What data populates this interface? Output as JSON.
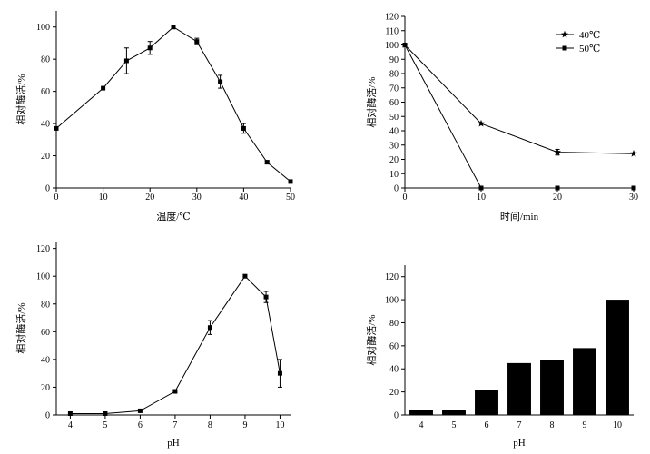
{
  "chart_data": [
    {
      "type": "line",
      "title": "",
      "xlabel": "温度/℃",
      "ylabel": "相对酶活/%",
      "xlim": [
        0,
        50
      ],
      "ylim": [
        0,
        110
      ],
      "xticks": [
        0,
        10,
        20,
        30,
        40,
        50
      ],
      "yticks": [
        0,
        20,
        40,
        60,
        80,
        100
      ],
      "series": [
        {
          "name": "",
          "marker": "square",
          "x": [
            0,
            10,
            15,
            20,
            25,
            30,
            35,
            40,
            45,
            50
          ],
          "values": [
            37,
            62,
            79,
            87,
            100,
            91,
            66,
            37,
            16,
            4
          ],
          "errors": [
            0,
            0,
            8,
            4,
            0,
            2,
            4,
            3,
            1,
            0
          ]
        }
      ]
    },
    {
      "type": "line",
      "title": "",
      "xlabel": "时间/min",
      "ylabel": "相对酶活/%",
      "xlim": [
        0,
        30
      ],
      "ylim": [
        0,
        120
      ],
      "xticks": [
        0,
        10,
        20,
        30
      ],
      "yticks": [
        0,
        10,
        20,
        30,
        40,
        50,
        60,
        70,
        80,
        90,
        100,
        110,
        120
      ],
      "legend": "top-right",
      "series": [
        {
          "name": "40℃",
          "marker": "star",
          "x": [
            0,
            10,
            20,
            30
          ],
          "values": [
            100,
            45,
            25,
            24
          ],
          "errors": [
            0,
            0,
            2,
            0
          ]
        },
        {
          "name": "50℃",
          "marker": "square",
          "x": [
            0,
            10,
            20,
            30
          ],
          "values": [
            100,
            0,
            0,
            0
          ],
          "errors": [
            0,
            0,
            0,
            0
          ]
        }
      ]
    },
    {
      "type": "line",
      "title": "",
      "xlabel": "pH",
      "ylabel": "相对酶活/%",
      "xlim": [
        3.6,
        10.3
      ],
      "ylim": [
        0,
        125
      ],
      "xticks": [
        4,
        5,
        6,
        7,
        8,
        9,
        10
      ],
      "yticks": [
        0,
        20,
        40,
        60,
        80,
        100,
        120
      ],
      "series": [
        {
          "name": "",
          "marker": "square",
          "x": [
            4,
            5,
            6,
            7,
            8,
            9,
            9.6,
            10
          ],
          "values": [
            1,
            1,
            3,
            17,
            63,
            100,
            85,
            30
          ],
          "errors": [
            0,
            0,
            0,
            0,
            5,
            0,
            4,
            10
          ]
        }
      ]
    },
    {
      "type": "bar",
      "title": "",
      "xlabel": "pH",
      "ylabel": "相对酶活/%",
      "ylim": [
        0,
        130
      ],
      "yticks": [
        0,
        20,
        40,
        60,
        80,
        100,
        120
      ],
      "categories": [
        "4",
        "5",
        "6",
        "7",
        "8",
        "9",
        "10"
      ],
      "values": [
        4,
        4,
        22,
        45,
        48,
        58,
        100
      ]
    }
  ]
}
